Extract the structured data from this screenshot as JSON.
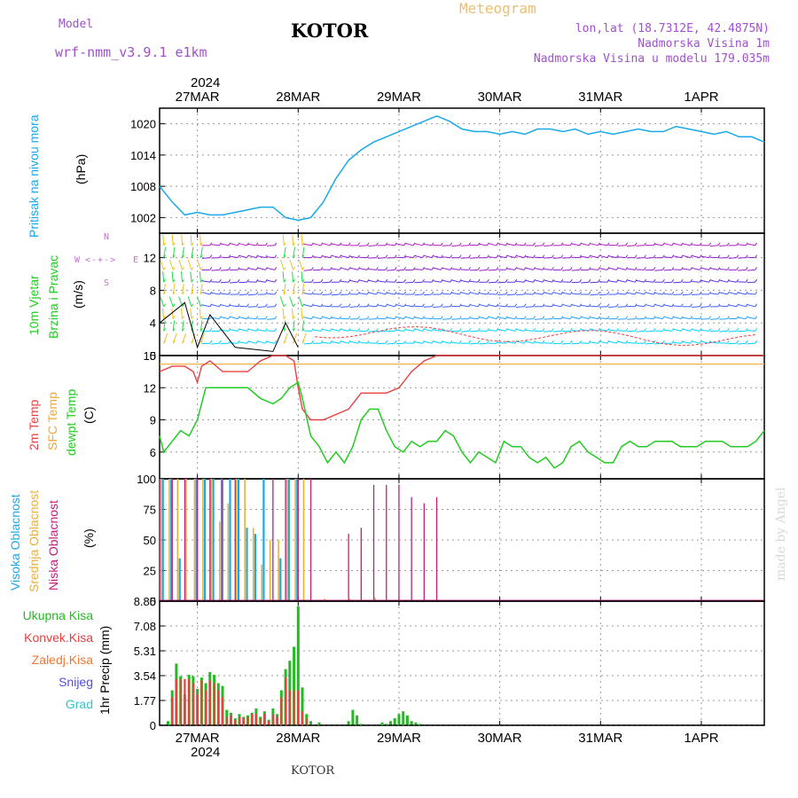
{
  "header": {
    "model_label": "Model",
    "model_name": "wrf-nmm_v3.9.1 e1km",
    "station": "KOTOR",
    "product": "Meteogram",
    "lonlat": "lon,lat (18.7312E, 42.4875N)",
    "elevation": "Nadmorska Visina 1m",
    "model_elevation": "Nadmorska Visina u modelu 179.035m",
    "year_top": "2024",
    "year_bottom": "2024",
    "footer_station": "KOTOR",
    "credit": "made by Angel"
  },
  "colors": {
    "pressure": "#1aa8e8",
    "temp2m": "#e84040",
    "sfc_temp": "#f0a830",
    "dewpoint": "#22cc22",
    "cloud_high": "#1aa8e8",
    "cloud_mid": "#e8b040",
    "cloud_low": "#c0207a",
    "precip_total": "#22bb22",
    "precip_conv": "#e84040",
    "precip_frozen": "#f07830",
    "snow": "#5050e0",
    "hail": "#30c8c8",
    "wind_axis": "#c070d0"
  },
  "time_axis": {
    "day_ticks": [
      "27MAR",
      "28MAR",
      "29MAR",
      "30MAR",
      "31MAR",
      "1APR"
    ],
    "start_hour_offset": -9,
    "end_hour": 135
  },
  "panels": {
    "pressure": {
      "ylabel_1": "Pritisak na nivou mora",
      "ylabel_units": "(hPa)",
      "ticks": [
        "1002",
        "1008",
        "1014",
        "1020"
      ],
      "ylim": [
        999,
        1023
      ]
    },
    "wind": {
      "ylabel_1": "10m Vjetar",
      "ylabel_2": "Brzina i Pravac",
      "ylabel_units": "(m/s)",
      "ticks": [
        "0",
        "4",
        "8",
        "12"
      ],
      "ylim": [
        0,
        15
      ],
      "compass_n": "N",
      "compass_s": "S",
      "compass_w": "W",
      "compass_e": "E"
    },
    "temperature": {
      "ylabel_1": "2m Temp",
      "ylabel_2": "SFC Temp",
      "ylabel_3": "dewpt Temp",
      "ylabel_units": "(C)",
      "ticks": [
        "6",
        "9",
        "12",
        "15"
      ],
      "ylim": [
        3.5,
        15
      ]
    },
    "cloud": {
      "ylabel_1": "Visoka Oblacnost",
      "ylabel_2": "Srednja Oblacnost",
      "ylabel_3": "Niska Oblacnost",
      "ylabel_units": "(%)",
      "ticks": [
        "0",
        "25",
        "50",
        "75",
        "100"
      ],
      "ylim": [
        0,
        100
      ]
    },
    "precip": {
      "ylabel_1": "1hr Precip (mm)",
      "ticks": [
        "0",
        "1.77",
        "3.54",
        "5.31",
        "7.08",
        "8.85"
      ],
      "ylim": [
        0,
        8.85
      ],
      "legend": [
        "Ukupna Kisa",
        "Konvek.Kisa",
        "Zaledj.Kisa",
        "Snijeg",
        "Grad"
      ]
    }
  },
  "chart_data": [
    {
      "type": "line",
      "name": "pressure",
      "x": [
        -9,
        -6,
        -3,
        0,
        3,
        6,
        9,
        12,
        15,
        18,
        21,
        24,
        27,
        30,
        33,
        36,
        39,
        42,
        45,
        48,
        51,
        54,
        57,
        60,
        63,
        66,
        69,
        72,
        75,
        78,
        81,
        84,
        87,
        90,
        93,
        96,
        99,
        102,
        105,
        108,
        111,
        114,
        117,
        120,
        123,
        126,
        129,
        132,
        135
      ],
      "values": [
        1008,
        1005,
        1002.5,
        1003,
        1002.5,
        1002.5,
        1003,
        1003.5,
        1004,
        1004,
        1002,
        1001.5,
        1002,
        1005,
        1009.5,
        1013,
        1015,
        1016.5,
        1017.5,
        1018.5,
        1019.5,
        1020.5,
        1021.5,
        1020.5,
        1019,
        1018.5,
        1018.5,
        1018,
        1018.5,
        1018,
        1019,
        1019,
        1018.5,
        1019,
        1018,
        1018.5,
        1018,
        1018.5,
        1019,
        1018.5,
        1018.5,
        1019.5,
        1019,
        1018.5,
        1018,
        1018.5,
        1017.5,
        1017.5,
        1016.5
      ]
    },
    {
      "type": "line",
      "name": "temp2m",
      "x": [
        -9,
        -6,
        -3,
        -1,
        0,
        1,
        3,
        6,
        9,
        12,
        15,
        18,
        21,
        23,
        24,
        25,
        27,
        30,
        33,
        36,
        39,
        42,
        45,
        48,
        51,
        54,
        57,
        60,
        63,
        66,
        69,
        72,
        75,
        78,
        81,
        84,
        87,
        90,
        93,
        96,
        99,
        102,
        105,
        108,
        111,
        114,
        117,
        120,
        123,
        126,
        129,
        132,
        135
      ],
      "values": [
        13.5,
        14,
        14,
        13.5,
        12.5,
        14,
        14.5,
        13.5,
        13.5,
        13.5,
        14.5,
        15,
        15,
        14.5,
        12,
        10,
        9,
        9,
        9.5,
        10,
        11.5,
        11.5,
        11.5,
        12,
        13.5,
        14.5,
        15,
        15,
        15,
        15,
        15,
        15,
        15,
        15,
        15,
        15,
        15,
        15,
        15,
        15,
        15,
        15,
        15,
        15,
        15,
        15,
        15,
        15,
        15,
        15,
        15,
        15,
        15
      ]
    },
    {
      "type": "line",
      "name": "sfc_temp",
      "x": [
        -9,
        135
      ],
      "values": [
        14.2,
        14.2
      ]
    },
    {
      "type": "line",
      "name": "dewpoint",
      "x": [
        -9,
        -8,
        -6,
        -4,
        -2,
        0,
        2,
        4,
        6,
        9,
        12,
        15,
        18,
        20,
        22,
        24,
        25,
        27,
        29,
        31,
        33,
        35,
        37,
        39,
        41,
        43,
        45,
        47,
        49,
        51,
        53,
        55,
        57,
        59,
        61,
        63,
        65,
        67,
        69,
        71,
        73,
        75,
        77,
        79,
        81,
        83,
        85,
        87,
        89,
        91,
        93,
        95,
        97,
        99,
        101,
        103,
        105,
        107,
        109,
        111,
        113,
        115,
        117,
        119,
        121,
        123,
        125,
        127,
        129,
        131,
        133,
        135
      ],
      "values": [
        7.5,
        6,
        7,
        8,
        7.5,
        9,
        12,
        12,
        12,
        12,
        12,
        11,
        10.5,
        11,
        12,
        12.5,
        11,
        7.5,
        6.5,
        5,
        6,
        5,
        6.5,
        9,
        10,
        10,
        8,
        6.5,
        6,
        7,
        6.5,
        7,
        7,
        8,
        7.5,
        6,
        5,
        6,
        5.5,
        5,
        7,
        6.5,
        6.5,
        5.5,
        5,
        5.5,
        4.5,
        5,
        6.5,
        7,
        6,
        5.5,
        5,
        5,
        6.5,
        7,
        6.5,
        6.5,
        7,
        7,
        7,
        6.5,
        6.5,
        6.5,
        7,
        7,
        7,
        6.5,
        6.5,
        6.5,
        7,
        8
      ]
    },
    {
      "type": "bar",
      "name": "cloud_high",
      "x": [
        -8,
        -6,
        -4,
        -2,
        0,
        2,
        4,
        6,
        8,
        10,
        12,
        14,
        16,
        18,
        20,
        22,
        24
      ],
      "values": [
        100,
        100,
        35,
        0,
        100,
        100,
        100,
        100,
        100,
        100,
        60,
        55,
        100,
        0,
        35,
        100,
        100
      ]
    },
    {
      "type": "bar",
      "name": "cloud_mid",
      "x": [
        -9,
        -7,
        -5,
        -3,
        -1,
        1,
        3,
        5,
        7,
        9,
        11,
        13,
        15,
        17,
        19,
        21,
        23,
        25,
        30,
        36,
        42
      ],
      "values": [
        100,
        100,
        100,
        100,
        100,
        100,
        100,
        65,
        80,
        100,
        100,
        60,
        30,
        50,
        50,
        100,
        100,
        100,
        2,
        2,
        3
      ]
    },
    {
      "type": "bar",
      "name": "cloud_low",
      "x": [
        -9,
        -6,
        -3,
        0,
        3,
        6,
        9,
        18,
        21,
        24,
        27,
        36,
        39,
        42,
        45,
        48,
        51,
        54,
        57
      ],
      "values": [
        100,
        100,
        100,
        100,
        100,
        100,
        100,
        100,
        100,
        100,
        100,
        55,
        60,
        95,
        95,
        95,
        85,
        80,
        85
      ]
    },
    {
      "type": "bar",
      "name": "precip_total",
      "x": [
        -7,
        -6,
        -5,
        -4,
        -3,
        -2,
        -1,
        0,
        1,
        2,
        3,
        4,
        5,
        6,
        7,
        8,
        9,
        10,
        11,
        12,
        13,
        14,
        15,
        16,
        17,
        18,
        19,
        20,
        21,
        22,
        23,
        24,
        25,
        26,
        27,
        29,
        36,
        37,
        38,
        39,
        44,
        45,
        46,
        47,
        48,
        49,
        50,
        51,
        52,
        53
      ],
      "values": [
        0.3,
        2.5,
        4.4,
        3.5,
        2.2,
        3.6,
        3.5,
        2.6,
        3.4,
        3.0,
        3.8,
        3.6,
        3.0,
        2.8,
        1.1,
        0.9,
        0.5,
        0.8,
        0.6,
        0.7,
        0.9,
        1.2,
        0.6,
        1.0,
        0.4,
        1.2,
        0.8,
        2.5,
        4.0,
        4.6,
        5.6,
        8.5,
        2.7,
        0.8,
        0.3,
        0.2,
        0.3,
        1.1,
        0.7,
        0.1,
        0.2,
        0.1,
        0.3,
        0.5,
        0.8,
        1.0,
        0.7,
        0.3,
        0.2,
        0.1
      ]
    },
    {
      "type": "bar",
      "name": "precip_conv",
      "x": [
        -6,
        -5,
        -4,
        -3,
        -2,
        -1,
        0,
        1,
        2,
        3,
        4,
        5,
        6,
        7,
        8,
        9,
        10,
        11,
        12,
        13,
        14,
        15,
        16,
        17,
        18,
        19,
        20,
        21,
        22,
        23,
        24,
        25,
        26
      ],
      "values": [
        2.0,
        3.3,
        3.3,
        3.3,
        3.3,
        3.0,
        2.2,
        3.2,
        2.5,
        3.2,
        3.0,
        2.5,
        2.0,
        0.6,
        0.7,
        0.4,
        0.6,
        0.5,
        0.6,
        0.8,
        0.8,
        0.5,
        0.8,
        0.3,
        0.8,
        0.6,
        2.0,
        3.4,
        2.5,
        2.5,
        2.5,
        1.0,
        0.5
      ]
    }
  ]
}
